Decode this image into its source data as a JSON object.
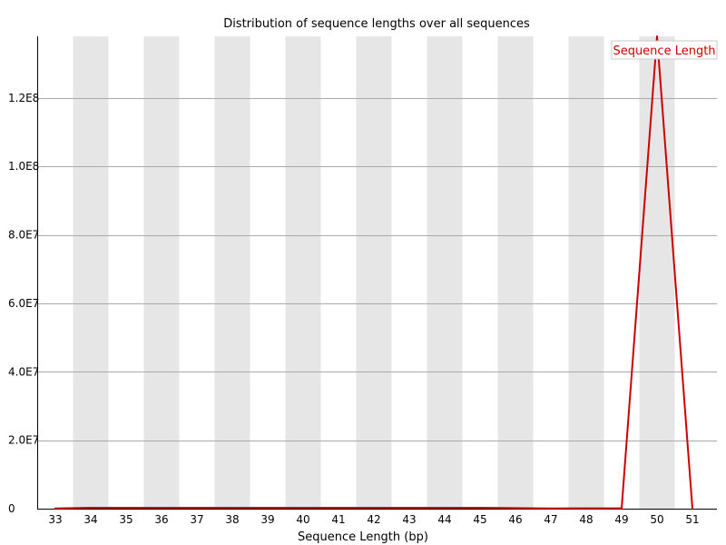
{
  "chart_data": {
    "type": "line",
    "title": "Distribution of sequence lengths over all sequences",
    "xlabel": "Sequence Length (bp)",
    "ylabel": "",
    "x": [
      "33",
      "34",
      "35",
      "36",
      "37",
      "38",
      "39",
      "40",
      "41",
      "42",
      "43",
      "44",
      "45",
      "46",
      "47",
      "48",
      "49",
      "50",
      "51"
    ],
    "ylim": [
      0,
      138000000
    ],
    "y_ticks": [
      0,
      20000000,
      40000000,
      60000000,
      80000000,
      100000000,
      120000000
    ],
    "y_tick_labels": [
      "0",
      "2.0E7",
      "4.0E7",
      "6.0E7",
      "8.0E7",
      "1.0E8",
      "1.2E8"
    ],
    "grid": true,
    "band_color": "#e6e6e6",
    "legend_position": "top-right",
    "series": [
      {
        "name": "Sequence Length",
        "color": "#cc0000",
        "values": [
          50000,
          250000,
          250000,
          250000,
          250000,
          250000,
          250000,
          250000,
          250000,
          250000,
          250000,
          250000,
          250000,
          150000,
          50000,
          100000,
          100000,
          138000000,
          0
        ]
      }
    ]
  }
}
